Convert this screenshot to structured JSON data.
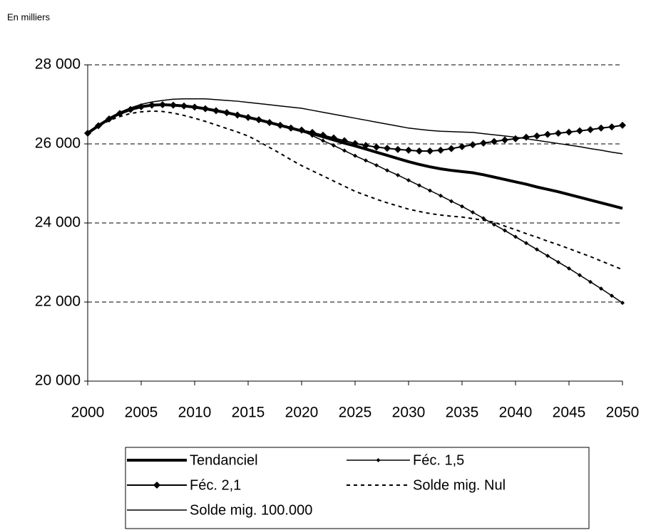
{
  "chart_data": {
    "type": "line",
    "y_axis_label": "En milliers",
    "x": [
      2000,
      2001,
      2002,
      2003,
      2004,
      2005,
      2006,
      2007,
      2008,
      2009,
      2010,
      2011,
      2012,
      2013,
      2014,
      2015,
      2016,
      2017,
      2018,
      2019,
      2020,
      2021,
      2022,
      2023,
      2024,
      2025,
      2026,
      2027,
      2028,
      2029,
      2030,
      2031,
      2032,
      2033,
      2034,
      2035,
      2036,
      2037,
      2038,
      2039,
      2040,
      2041,
      2042,
      2043,
      2044,
      2045,
      2046,
      2047,
      2048,
      2049,
      2050
    ],
    "xlim": [
      2000,
      2050
    ],
    "xticks": [
      2000,
      2005,
      2010,
      2015,
      2020,
      2025,
      2030,
      2035,
      2040,
      2045,
      2050
    ],
    "ylim": [
      20000,
      28000
    ],
    "yticks": [
      {
        "value": 20000,
        "label": "20 000"
      },
      {
        "value": 22000,
        "label": "22 000"
      },
      {
        "value": 24000,
        "label": "24 000"
      },
      {
        "value": 26000,
        "label": "26 000"
      },
      {
        "value": 28000,
        "label": "28 000"
      }
    ],
    "grid": true,
    "legend_position": "bottom",
    "series": [
      {
        "name": "Tendanciel",
        "color": "#000000",
        "line_width": 4,
        "dash": false,
        "marker": "none",
        "values": [
          26270,
          26460,
          26630,
          26770,
          26870,
          26940,
          26980,
          26990,
          26980,
          26960,
          26930,
          26890,
          26840,
          26790,
          26730,
          26670,
          26610,
          26540,
          26470,
          26400,
          26330,
          26260,
          26180,
          26100,
          26020,
          25950,
          25870,
          25790,
          25710,
          25630,
          25550,
          25480,
          25420,
          25370,
          25330,
          25300,
          25270,
          25220,
          25160,
          25100,
          25040,
          24980,
          24910,
          24850,
          24790,
          24720,
          24650,
          24580,
          24510,
          24440,
          24370
        ]
      },
      {
        "name": "Féc. 1,5",
        "color": "#000000",
        "line_width": 1.5,
        "dash": false,
        "marker": "diamond-small",
        "values": [
          26270,
          26460,
          26630,
          26770,
          26870,
          26940,
          26980,
          26990,
          26980,
          26960,
          26930,
          26890,
          26840,
          26790,
          26730,
          26670,
          26610,
          26540,
          26470,
          26400,
          26330,
          26210,
          26080,
          25960,
          25830,
          25700,
          25580,
          25460,
          25330,
          25210,
          25080,
          24950,
          24820,
          24690,
          24550,
          24420,
          24270,
          24120,
          23960,
          23810,
          23650,
          23490,
          23330,
          23170,
          23010,
          22850,
          22680,
          22510,
          22340,
          22160,
          21980
        ]
      },
      {
        "name": "Féc. 2,1",
        "color": "#000000",
        "line_width": 2,
        "dash": false,
        "marker": "diamond-large",
        "values": [
          26270,
          26460,
          26630,
          26770,
          26870,
          26940,
          26980,
          26990,
          26980,
          26960,
          26930,
          26890,
          26840,
          26790,
          26730,
          26670,
          26610,
          26540,
          26470,
          26400,
          26350,
          26290,
          26220,
          26150,
          26080,
          26010,
          25960,
          25920,
          25890,
          25860,
          25840,
          25820,
          25820,
          25840,
          25880,
          25930,
          25980,
          26020,
          26060,
          26100,
          26130,
          26170,
          26200,
          26240,
          26270,
          26300,
          26330,
          26360,
          26400,
          26430,
          26470
        ]
      },
      {
        "name": "Solde mig. Nul",
        "color": "#000000",
        "line_width": 2,
        "dash": true,
        "marker": "none",
        "values": [
          26270,
          26440,
          26590,
          26690,
          26770,
          26810,
          26830,
          26820,
          26780,
          26720,
          26650,
          26570,
          26480,
          26390,
          26300,
          26200,
          26060,
          25910,
          25760,
          25600,
          25450,
          25320,
          25190,
          25060,
          24930,
          24800,
          24700,
          24600,
          24510,
          24430,
          24350,
          24290,
          24240,
          24200,
          24170,
          24150,
          24110,
          24070,
          24020,
          23920,
          23830,
          23730,
          23640,
          23540,
          23450,
          23350,
          23250,
          23150,
          23040,
          22930,
          22820
        ]
      },
      {
        "name": "Solde mig. 100.000",
        "color": "#000000",
        "line_width": 1.5,
        "dash": false,
        "marker": "none",
        "values": [
          26270,
          26480,
          26660,
          26800,
          26910,
          27000,
          27060,
          27100,
          27130,
          27140,
          27140,
          27140,
          27120,
          27100,
          27080,
          27050,
          27020,
          26990,
          26960,
          26930,
          26900,
          26850,
          26800,
          26750,
          26700,
          26650,
          26600,
          26550,
          26500,
          26450,
          26400,
          26370,
          26340,
          26320,
          26310,
          26300,
          26290,
          26260,
          26230,
          26200,
          26170,
          26130,
          26090,
          26050,
          26010,
          25970,
          25930,
          25880,
          25840,
          25790,
          25750
        ]
      }
    ]
  }
}
